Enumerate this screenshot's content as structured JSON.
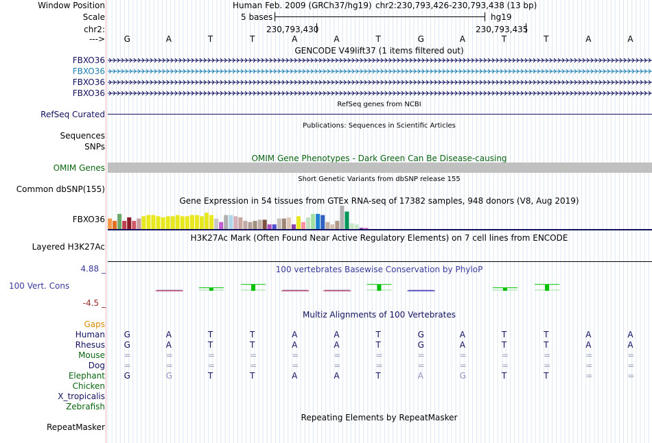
{
  "header": {
    "window_position_label": "Window Position",
    "assembly": "Human Feb. 2009 (GRCh37/hg19)",
    "region": "chr2:230,793,426-230,793,438 (13 bp)",
    "scale_label": "Scale",
    "scale_text": "5 bases",
    "scale_db": "hg19",
    "chrom_label": "chr2:",
    "coord_left": "230,793,430",
    "coord_right": "230,793,435",
    "strand_label": "--->"
  },
  "bases": [
    "G",
    "A",
    "T",
    "T",
    "A",
    "A",
    "T",
    "G",
    "A",
    "T",
    "T",
    "A",
    "A"
  ],
  "gencode": {
    "title": "GENCODE V49lift37 (1 items filtered out)",
    "rows": [
      {
        "label": "FBXO36",
        "color": "#10105e"
      },
      {
        "label": "FBXO36",
        "color": "#1c7db0"
      },
      {
        "label": "FBXO36",
        "color": "#10105e"
      },
      {
        "label": "FBXO36",
        "color": "#10105e"
      }
    ]
  },
  "refseq": {
    "title": "RefSeq genes from NCBI",
    "label": "RefSeq Curated"
  },
  "pubs": {
    "title": "Publications: Sequences in Scientific Articles",
    "seq_label": "Sequences",
    "snp_label": "SNPs"
  },
  "omim": {
    "title": "OMIM Gene Phenotypes - Dark Green Can Be Disease-causing",
    "label": "OMIM Genes"
  },
  "dbsnp": {
    "title": "Short Genetic Variants from dbSNP release 155",
    "label": "Common dbSNP(155)"
  },
  "gtex": {
    "title": "Gene Expression in 54 tissues from GTEx RNA-seq of 17382 samples, 948 donors (V8, Aug 2019)",
    "label": "FBXO36",
    "bars": [
      {
        "v": 0.45,
        "c": "#f59a4a"
      },
      {
        "v": 0.35,
        "c": "#e07020"
      },
      {
        "v": 0.65,
        "c": "#6aaa6a"
      },
      {
        "v": 0.35,
        "c": "#c04050"
      },
      {
        "v": 0.5,
        "c": "#8a1a28"
      },
      {
        "v": 0.35,
        "c": "#d05a6a"
      },
      {
        "v": 0.45,
        "c": "#c8a0a0"
      },
      {
        "v": 0.55,
        "c": "#e8e820"
      },
      {
        "v": 0.6,
        "c": "#e8e820"
      },
      {
        "v": 0.6,
        "c": "#e8e820"
      },
      {
        "v": 0.55,
        "c": "#e8e820"
      },
      {
        "v": 0.5,
        "c": "#e8e820"
      },
      {
        "v": 0.55,
        "c": "#e8e820"
      },
      {
        "v": 0.55,
        "c": "#e8e820"
      },
      {
        "v": 0.6,
        "c": "#e8e820"
      },
      {
        "v": 0.55,
        "c": "#e8e820"
      },
      {
        "v": 0.55,
        "c": "#e8e820"
      },
      {
        "v": 0.6,
        "c": "#e8e820"
      },
      {
        "v": 0.6,
        "c": "#e8e820"
      },
      {
        "v": 0.55,
        "c": "#e8e820"
      },
      {
        "v": 0.7,
        "c": "#e8e820"
      },
      {
        "v": 0.6,
        "c": "#e8e820"
      },
      {
        "v": 0.45,
        "c": "#c8c8c8"
      },
      {
        "v": 0.3,
        "c": "#c060d0"
      },
      {
        "v": 0.6,
        "c": "#b0b0b0"
      },
      {
        "v": 0.6,
        "c": "#b0d8e8"
      },
      {
        "v": 0.55,
        "c": "#d8b0b8"
      },
      {
        "v": 0.5,
        "c": "#c8a8a0"
      },
      {
        "v": 0.35,
        "c": "#c0a8a8"
      },
      {
        "v": 0.3,
        "c": "#b0a098"
      },
      {
        "v": 0.35,
        "c": "#a09080"
      },
      {
        "v": 0.4,
        "c": "#c0b0a8"
      },
      {
        "v": 0.4,
        "c": "#805040"
      },
      {
        "v": 0.2,
        "c": "#b050c0"
      },
      {
        "v": 0.2,
        "c": "#5050d0"
      },
      {
        "v": 0.45,
        "c": "#c8c0b8"
      },
      {
        "v": 0.45,
        "c": "#a08878"
      },
      {
        "v": 0.5,
        "c": "#e0c8b8"
      },
      {
        "v": 0.2,
        "c": "#8840a8"
      },
      {
        "v": 0.55,
        "c": "#e8e820"
      },
      {
        "v": 0.3,
        "c": "#ff90a0"
      },
      {
        "v": 0.5,
        "c": "#c0e0c0"
      },
      {
        "v": 0.65,
        "c": "#a0e0a0"
      },
      {
        "v": 0.65,
        "c": "#2080d0"
      },
      {
        "v": 0.6,
        "c": "#3060c0"
      },
      {
        "v": 0.3,
        "c": "#c8b0a0"
      },
      {
        "v": 0.2,
        "c": "#d8c0b0"
      },
      {
        "v": 0.35,
        "c": "#b09888"
      },
      {
        "v": 1.0,
        "c": "#b0b0b0"
      },
      {
        "v": 0.75,
        "c": "#00965a"
      },
      {
        "v": 0.25,
        "c": "#c8e8c8"
      },
      {
        "v": 0.2,
        "c": "#c8e8c8"
      },
      {
        "v": 0.05,
        "c": "#8040a0"
      },
      {
        "v": 0.05,
        "c": "#d070c0"
      }
    ]
  },
  "h3k27ac": {
    "title": "H3K27Ac Mark (Often Found Near Active Regulatory Elements) on 7 cell lines from ENCODE",
    "label": "Layered H3K27Ac"
  },
  "cons": {
    "title": "100 vertebrates Basewise Conservation by PhyloP",
    "label": "100 Vert. Cons",
    "max_label": "4.88 _",
    "min_label": "-4.5 _",
    "scores": [
      0,
      -0.1,
      0.4,
      1.2,
      -0.05,
      -0.05,
      1.2,
      -0.2,
      0,
      0.4,
      1.2,
      0,
      0
    ]
  },
  "multiz": {
    "title": "Multiz Alignments of 100 Vertebrates",
    "gaps_label": "Gaps",
    "species": [
      {
        "name": "Human",
        "color": "#10105e",
        "bases": [
          "G",
          "A",
          "T",
          "T",
          "A",
          "A",
          "T",
          "G",
          "A",
          "T",
          "T",
          "A",
          "A"
        ]
      },
      {
        "name": "Rhesus",
        "color": "#10105e",
        "bases": [
          "G",
          "A",
          "T",
          "T",
          "A",
          "A",
          "T",
          "G",
          "A",
          "T",
          "T",
          "A",
          "A"
        ]
      },
      {
        "name": "Mouse",
        "color": "#0a6410",
        "bases": [
          "=",
          "=",
          "=",
          "=",
          "=",
          "=",
          "=",
          "=",
          "=",
          "=",
          "=",
          "=",
          "="
        ]
      },
      {
        "name": "Dog",
        "color": "#10105e",
        "bases": [
          "=",
          "=",
          "=",
          "=",
          "=",
          "=",
          "=",
          "=",
          "=",
          "=",
          "=",
          "=",
          "="
        ]
      },
      {
        "name": "Elephant",
        "color": "#0a6410",
        "bases": [
          "G",
          "G",
          "T",
          "T",
          "A",
          "A",
          "T",
          "A",
          "G",
          "T",
          "T",
          "=",
          "="
        ]
      },
      {
        "name": "Chicken",
        "color": "#0a6410",
        "bases": [
          "",
          "",
          "",
          "",
          "",
          "",
          "",
          "",
          "",
          "",
          "",
          "",
          ""
        ]
      },
      {
        "name": "X_tropicalis",
        "color": "#10105e",
        "bases": [
          "",
          "",
          "",
          "",
          "",
          "",
          "",
          "",
          "",
          "",
          "",
          "",
          ""
        ]
      },
      {
        "name": "Zebrafish",
        "color": "#0a6410",
        "bases": [
          "",
          "",
          "",
          "",
          "",
          "",
          "",
          "",
          "",
          "",
          "",
          "",
          ""
        ]
      }
    ]
  },
  "repeatmasker": {
    "title": "Repeating Elements by RepeatMasker",
    "label": "RepeatMasker"
  }
}
